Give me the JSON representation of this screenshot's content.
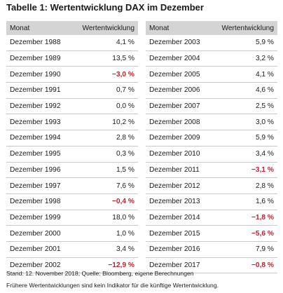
{
  "title": "Tabelle 1: Wertentwicklung DAX im Dezember",
  "headers": {
    "month": "Monat",
    "value": "Wertentwicklung"
  },
  "left_rows": [
    {
      "month": "Dezember 1988",
      "value": "4,1 %",
      "negative": false
    },
    {
      "month": "Dezember 1989",
      "value": "13,5 %",
      "negative": false
    },
    {
      "month": "Dezember 1990",
      "value": "−3,0 %",
      "negative": true
    },
    {
      "month": "Dezember 1991",
      "value": "0,7 %",
      "negative": false
    },
    {
      "month": "Dezember 1992",
      "value": "0,0 %",
      "negative": false
    },
    {
      "month": "Dezember 1993",
      "value": "10,2 %",
      "negative": false
    },
    {
      "month": "Dezember 1994",
      "value": "2,8 %",
      "negative": false
    },
    {
      "month": "Dezember 1995",
      "value": "0,3 %",
      "negative": false
    },
    {
      "month": "Dezember 1996",
      "value": "1,5 %",
      "negative": false
    },
    {
      "month": "Dezember 1997",
      "value": "7,6 %",
      "negative": false
    },
    {
      "month": "Dezember 1998",
      "value": "−0,4 %",
      "negative": true
    },
    {
      "month": "Dezember 1999",
      "value": "18,0 %",
      "negative": false
    },
    {
      "month": "Dezember 2000",
      "value": "1,0 %",
      "negative": false
    },
    {
      "month": "Dezember 2001",
      "value": "3,4 %",
      "negative": false
    },
    {
      "month": "Dezember 2002",
      "value": "−12,9 %",
      "negative": true
    }
  ],
  "right_rows": [
    {
      "month": "Dezember 2003",
      "value": "5,9 %",
      "negative": false
    },
    {
      "month": "Dezember 2004",
      "value": "3,2 %",
      "negative": false
    },
    {
      "month": "Dezember 2005",
      "value": "4,1 %",
      "negative": false
    },
    {
      "month": "Dezember 2006",
      "value": "4,6 %",
      "negative": false
    },
    {
      "month": "Dezember 2007",
      "value": "2,5 %",
      "negative": false
    },
    {
      "month": "Dezember 2008",
      "value": "3,0 %",
      "negative": false
    },
    {
      "month": "Dezember 2009",
      "value": "5,9 %",
      "negative": false
    },
    {
      "month": "Dezember 2010",
      "value": "3,4 %",
      "negative": false
    },
    {
      "month": "Dezember 2011",
      "value": "−3,1 %",
      "negative": true
    },
    {
      "month": "Dezember 2012",
      "value": "2,8 %",
      "negative": false
    },
    {
      "month": "Dezember 2013",
      "value": "1,6 %",
      "negative": false
    },
    {
      "month": "Dezember 2014",
      "value": "−1,8 %",
      "negative": true
    },
    {
      "month": "Dezember 2015",
      "value": "−5,6 %",
      "negative": true
    },
    {
      "month": "Dezember 2016",
      "value": "7,9 %",
      "negative": false
    },
    {
      "month": "Dezember 2017",
      "value": "−0,8 %",
      "negative": true
    }
  ],
  "footnotes": {
    "source": "Stand: 12. November 2018; Quelle: Bloomberg, eigene Berechnungen",
    "disclaimer": "Frühere Wertentwicklungen sind kein Indikator für die künftige Wertentwicklung."
  },
  "colors": {
    "header_bg": "#d4d4d4",
    "negative": "#c0202f",
    "row_border": "#c8c8c8"
  }
}
